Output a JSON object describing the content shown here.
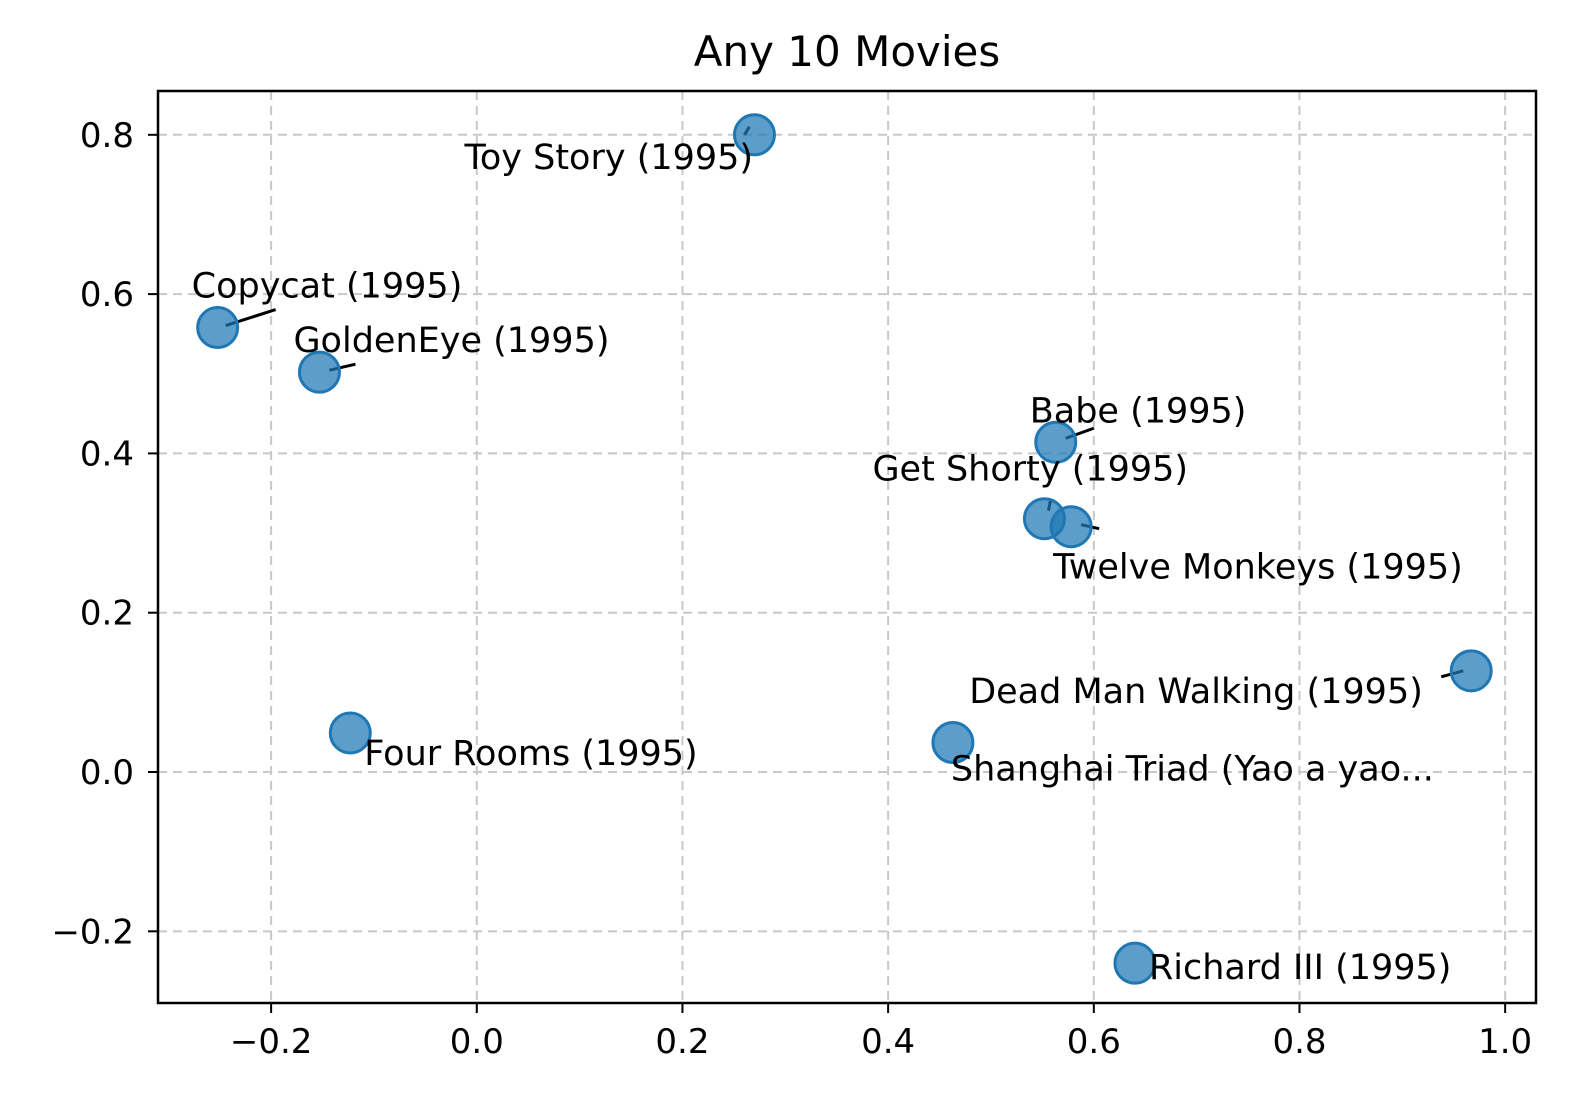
{
  "chart_data": {
    "type": "scatter",
    "title": "Any 10 Movies",
    "xlabel": "",
    "ylabel": "",
    "xlim": [
      -0.31,
      1.03
    ],
    "ylim": [
      -0.29,
      0.855
    ],
    "xticks": [
      -0.2,
      0.0,
      0.2,
      0.4,
      0.6,
      0.8,
      1.0
    ],
    "xtick_labels": [
      "−0.2",
      "0.0",
      "0.2",
      "0.4",
      "0.6",
      "0.8",
      "1.0"
    ],
    "yticks": [
      -0.2,
      0.0,
      0.2,
      0.4,
      0.6,
      0.8
    ],
    "ytick_labels": [
      "−0.2",
      "0.0",
      "0.2",
      "0.4",
      "0.6",
      "0.8"
    ],
    "grid": true,
    "marker_color": "#1f77b4",
    "points": [
      {
        "label": "Toy Story (1995)",
        "x": 0.27,
        "y": 0.8
      },
      {
        "label": "Copycat (1995)",
        "x": -0.252,
        "y": 0.558
      },
      {
        "label": "GoldenEye (1995)",
        "x": -0.153,
        "y": 0.502
      },
      {
        "label": "Babe (1995)",
        "x": 0.563,
        "y": 0.414
      },
      {
        "label": "Get Shorty (1995)",
        "x": 0.552,
        "y": 0.318
      },
      {
        "label": "Twelve Monkeys (1995)",
        "x": 0.578,
        "y": 0.308
      },
      {
        "label": "Dead Man Walking (1995)",
        "x": 0.967,
        "y": 0.127
      },
      {
        "label": "Four Rooms (1995)",
        "x": -0.123,
        "y": 0.049
      },
      {
        "label": "Shanghai Triad (Yao a yao...",
        "x": 0.463,
        "y": 0.037
      },
      {
        "label": "Richard III (1995)",
        "x": 0.64,
        "y": -0.24
      }
    ]
  }
}
